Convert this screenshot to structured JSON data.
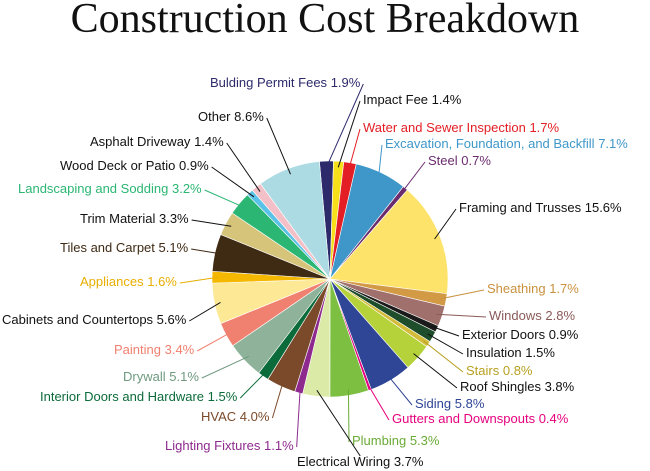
{
  "chart_data": {
    "type": "pie",
    "title": "Construction Cost Breakdown",
    "categories": [
      "Bulding Permit Fees",
      "Impact Fee",
      "Water and Sewer Inspection",
      "Excavation, Foundation, and Backfill",
      "Steel",
      "Framing and Trusses",
      "Sheathing",
      "Windows",
      "Exterior Doors",
      "Insulation",
      "Stairs",
      "Roof Shingles",
      "Siding",
      "Gutters and Downspouts",
      "Plumbing",
      "Electrical Wiring",
      "Lighting Fixtures",
      "HVAC",
      "Interior Doors and Hardware",
      "Drywall",
      "Painting",
      "Cabinets and Countertops",
      "Appliances",
      "Tiles and Carpet",
      "Trim Material",
      "Landscaping and Sodding",
      "Wood Deck or Patio",
      "Asphalt Driveway",
      "Other"
    ],
    "values": [
      1.9,
      1.4,
      1.7,
      7.1,
      0.7,
      15.6,
      1.7,
      2.8,
      0.9,
      1.5,
      0.8,
      3.8,
      5.8,
      0.4,
      5.3,
      3.7,
      1.1,
      4.0,
      1.5,
      5.1,
      3.4,
      5.6,
      1.6,
      5.1,
      3.3,
      3.2,
      0.9,
      1.4,
      8.6
    ],
    "value_labels": [
      "1.9%",
      "1.4%",
      "1.7%",
      "7.1%",
      "0.7%",
      "15.6%",
      "1.7%",
      "2.8%",
      "0.9%",
      "1.5%",
      "0.8%",
      "3.8%",
      "5.8%",
      "0.4%",
      "5.3%",
      "3.7%",
      "1.1%",
      "4.0%",
      "1.5%",
      "5.1%",
      "3.4%",
      "5.6%",
      "1.6%",
      "5.1%",
      "3.3%",
      "3.2%",
      "0.9%",
      "1.4%",
      "8.6%"
    ],
    "colors": [
      "#2c2a6b",
      "#f7e01a",
      "#e31e24",
      "#3f97c9",
      "#6b2c6e",
      "#fde36a",
      "#d39a45",
      "#a0706d",
      "#1a1a1a",
      "#1d4d2a",
      "#d4bc3a",
      "#b5d23a",
      "#2f4596",
      "#e6007e",
      "#7cbf41",
      "#dbeaa6",
      "#8e2a8e",
      "#7a4a2a",
      "#0b6b3a",
      "#8fb39a",
      "#f08070",
      "#fde995",
      "#f5b800",
      "#3f2a14",
      "#d6c47a",
      "#2bb673",
      "#5bc2e7",
      "#f4c0c8",
      "#acdbe3"
    ],
    "label_colors": [
      "#2c2a6b",
      "#111111",
      "#e31e24",
      "#3f97c9",
      "#6b2c6e",
      "#111111",
      "#c9913e",
      "#8a5a58",
      "#111111",
      "#111111",
      "#b8a020",
      "#111111",
      "#2f4596",
      "#e6007e",
      "#6aaa35",
      "#111111",
      "#8e2a8e",
      "#7a4a2a",
      "#0b6b3a",
      "#6f9a80",
      "#f08070",
      "#111111",
      "#e8ae00",
      "#3f2a14",
      "#111111",
      "#2bb673",
      "#111111",
      "#111111",
      "#111111"
    ]
  }
}
